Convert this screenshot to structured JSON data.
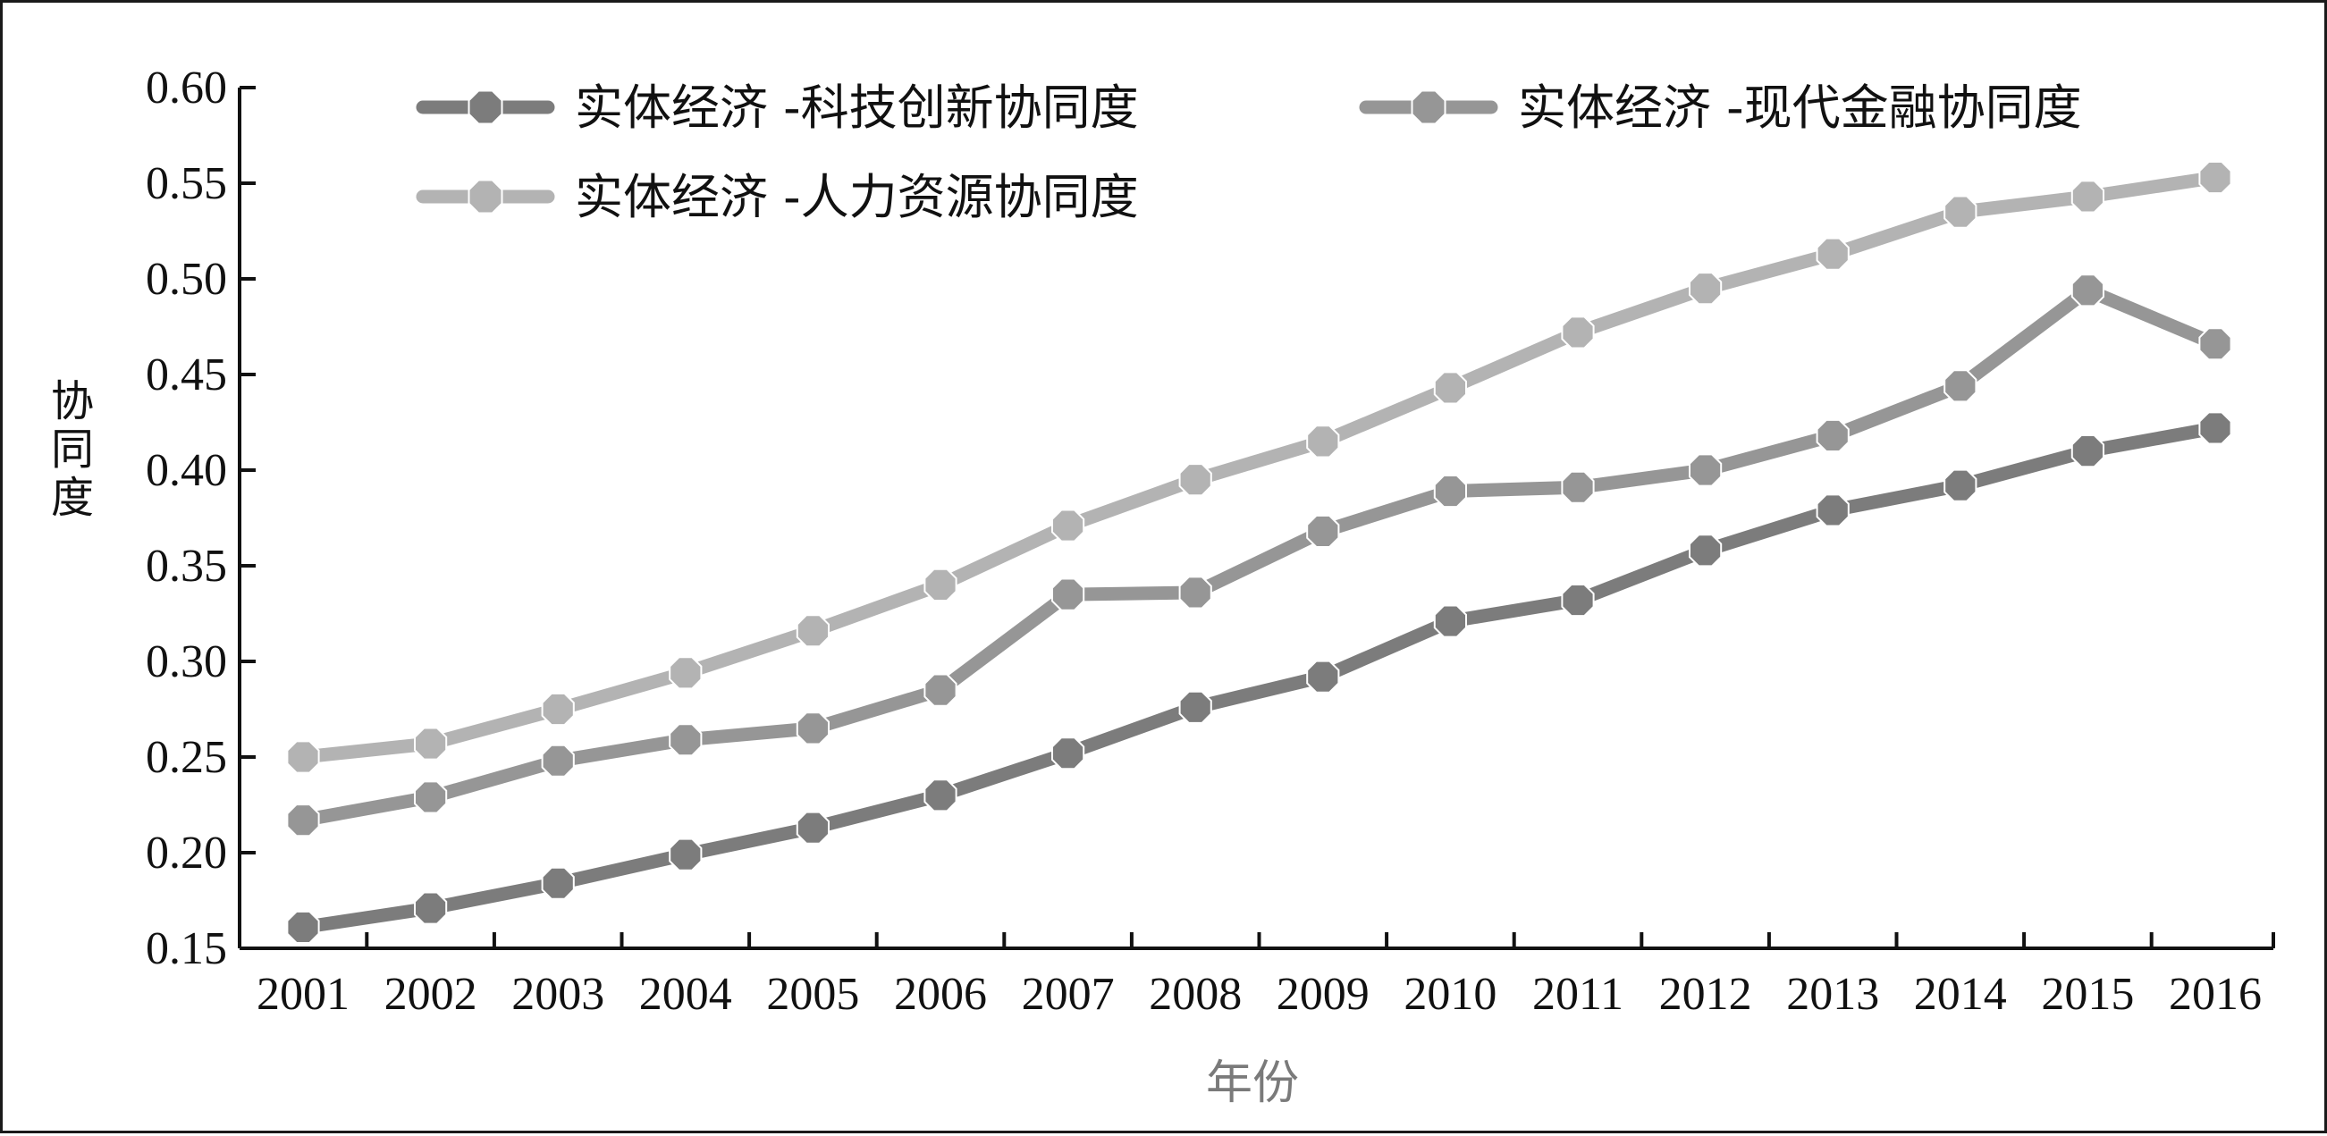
{
  "chart_data": {
    "type": "line",
    "x": [
      2001,
      2002,
      2003,
      2004,
      2005,
      2006,
      2007,
      2008,
      2009,
      2010,
      2011,
      2012,
      2013,
      2014,
      2015,
      2016
    ],
    "xtick_labels": [
      "2001",
      "2002",
      "2003",
      "2004",
      "2005",
      "2006",
      "2007",
      "2008",
      "2009",
      "2010",
      "2011",
      "2012",
      "2013",
      "2014",
      "2015",
      "2016"
    ],
    "ytick_labels": [
      "0.15",
      "0.20",
      "0.25",
      "0.30",
      "0.35",
      "0.40",
      "0.45",
      "0.50",
      "0.55",
      "0.60"
    ],
    "yticks": [
      0.15,
      0.2,
      0.25,
      0.3,
      0.35,
      0.4,
      0.45,
      0.5,
      0.55,
      0.6
    ],
    "ylim": [
      0.15,
      0.6
    ],
    "xlabel": "年份",
    "ylabel": "协同度",
    "grid": false,
    "legend_position": "top",
    "series": [
      {
        "name": "实体经济 -科技创新协同度",
        "color": "#7c7c7c",
        "values": [
          0.161,
          0.171,
          0.184,
          0.199,
          0.213,
          0.23,
          0.252,
          0.276,
          0.292,
          0.321,
          0.332,
          0.358,
          0.379,
          0.392,
          0.41,
          0.422
        ]
      },
      {
        "name": "实体经济 -现代金融协同度",
        "color": "#969696",
        "values": [
          0.217,
          0.229,
          0.248,
          0.259,
          0.265,
          0.285,
          0.335,
          0.336,
          0.368,
          0.389,
          0.391,
          0.4,
          0.418,
          0.444,
          0.494,
          0.466
        ]
      },
      {
        "name": "实体经济 -人力资源协同度",
        "color": "#b3b3b3",
        "values": [
          0.25,
          0.257,
          0.275,
          0.294,
          0.316,
          0.34,
          0.371,
          0.395,
          0.415,
          0.443,
          0.472,
          0.495,
          0.513,
          0.535,
          0.543,
          0.553
        ]
      }
    ]
  }
}
